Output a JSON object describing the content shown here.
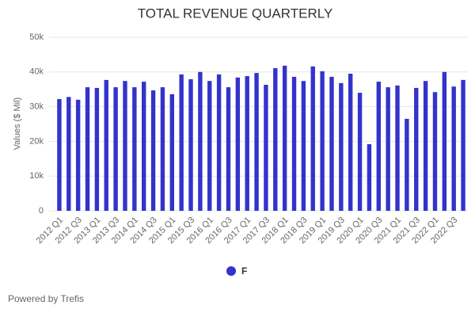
{
  "chart_data": {
    "type": "bar",
    "title": "TOTAL REVENUE QUARTERLY",
    "y_label": "Values ($ Mil)",
    "footer": "Powered by Trefis",
    "categories": [
      "2012 Q1",
      null,
      "2012 Q3",
      null,
      "2013 Q1",
      null,
      "2013 Q3",
      null,
      "2014 Q1",
      null,
      "2014 Q3",
      null,
      "2015 Q1",
      null,
      "2015 Q3",
      null,
      "2016 Q1",
      null,
      "2016 Q3",
      null,
      "2017 Q1",
      null,
      "2017 Q3",
      null,
      "2018 Q1",
      null,
      "2018 Q3",
      null,
      "2019 Q1",
      null,
      "2019 Q3",
      null,
      "2020 Q1",
      null,
      "2020 Q3",
      null,
      "2021 Q1",
      null,
      "2021 Q3",
      null,
      "2022 Q1",
      null,
      "2022 Q3",
      null
    ],
    "series": [
      {
        "name": "F",
        "color": "#3333cc",
        "values": [
          32200,
          32800,
          32000,
          35600,
          35400,
          37700,
          35600,
          37400,
          35600,
          37200,
          34700,
          35600,
          33600,
          39300,
          37900,
          40000,
          37400,
          39300,
          35600,
          38400,
          38800,
          39700,
          36300,
          41100,
          41800,
          38600,
          37400,
          41600,
          40200,
          38600,
          36800,
          39500,
          34000,
          19200,
          37200,
          35600,
          36100,
          26500,
          35400,
          37400,
          34200,
          40000,
          35800,
          37700
        ]
      }
    ],
    "ylim": [
      0,
      50000
    ],
    "yticks": [
      0,
      {
        "value": 10000,
        "label": "10k"
      },
      {
        "value": 20000,
        "label": "20k"
      },
      {
        "value": 30000,
        "label": "30k"
      },
      {
        "value": 40000,
        "label": "40k"
      },
      {
        "value": 50000,
        "label": "50k"
      }
    ],
    "grid": true,
    "legend": "bottom"
  }
}
